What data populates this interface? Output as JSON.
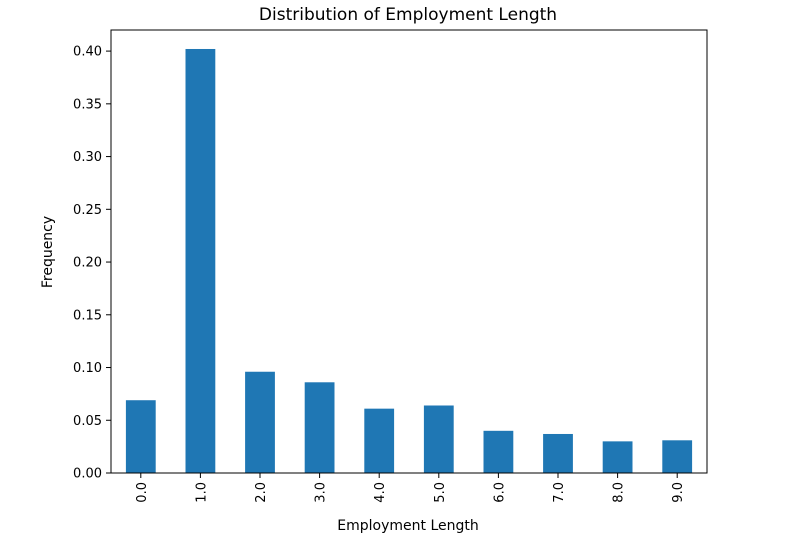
{
  "chart_data": {
    "type": "bar",
    "title": "Distribution of Employment Length",
    "xlabel": "Employment Length",
    "ylabel": "Frequency",
    "categories": [
      "0.0",
      "1.0",
      "2.0",
      "3.0",
      "4.0",
      "5.0",
      "6.0",
      "7.0",
      "8.0",
      "9.0"
    ],
    "values": [
      0.069,
      0.402,
      0.096,
      0.086,
      0.061,
      0.064,
      0.04,
      0.037,
      0.03,
      0.031
    ],
    "ylim": [
      0,
      0.42
    ],
    "yticks": [
      "0.00",
      "0.05",
      "0.10",
      "0.15",
      "0.20",
      "0.25",
      "0.30",
      "0.35",
      "0.40"
    ],
    "grid": false,
    "bar_color": "#1f77b4"
  }
}
